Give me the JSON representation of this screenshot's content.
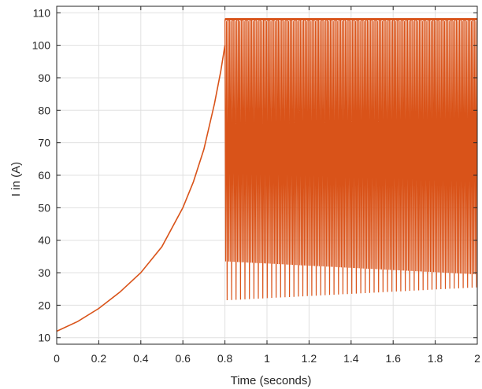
{
  "chart_data": {
    "type": "line",
    "title": "",
    "xlabel": "Time (seconds)",
    "ylabel": "I in (A)",
    "xlim": [
      0,
      2
    ],
    "ylim": [
      8,
      112
    ],
    "xticks": [
      0,
      0.2,
      0.4,
      0.6,
      0.8,
      1,
      1.2,
      1.4,
      1.6,
      1.8,
      2
    ],
    "xtick_labels": [
      "0",
      "0.2",
      "0.4",
      "0.6",
      "0.8",
      "1",
      "1.2",
      "1.4",
      "1.6",
      "1.8",
      "2"
    ],
    "yticks": [
      10,
      20,
      30,
      40,
      50,
      60,
      70,
      80,
      90,
      100,
      110
    ],
    "ytick_labels": [
      "10",
      "20",
      "30",
      "40",
      "50",
      "60",
      "70",
      "80",
      "90",
      "100",
      "110"
    ],
    "grid": true,
    "color": "#d95319",
    "series": [
      {
        "rise": {
          "x": [
            0,
            0.1,
            0.2,
            0.3,
            0.4,
            0.5,
            0.6,
            0.65,
            0.7,
            0.75,
            0.78,
            0.8
          ],
          "y": [
            12,
            15,
            19,
            24,
            30,
            38,
            50,
            58,
            68,
            82,
            92,
            100
          ]
        },
        "oscillation": {
          "x_start": 0.8,
          "x_end": 2.0,
          "upper": 108,
          "lower_a": {
            "x": [
              0.8,
              2.0
            ],
            "y": [
              33.5,
              29.5
            ]
          },
          "lower_b": {
            "x": [
              0.8,
              2.0
            ],
            "y": [
              21.5,
              25.5
            ]
          }
        }
      }
    ]
  }
}
